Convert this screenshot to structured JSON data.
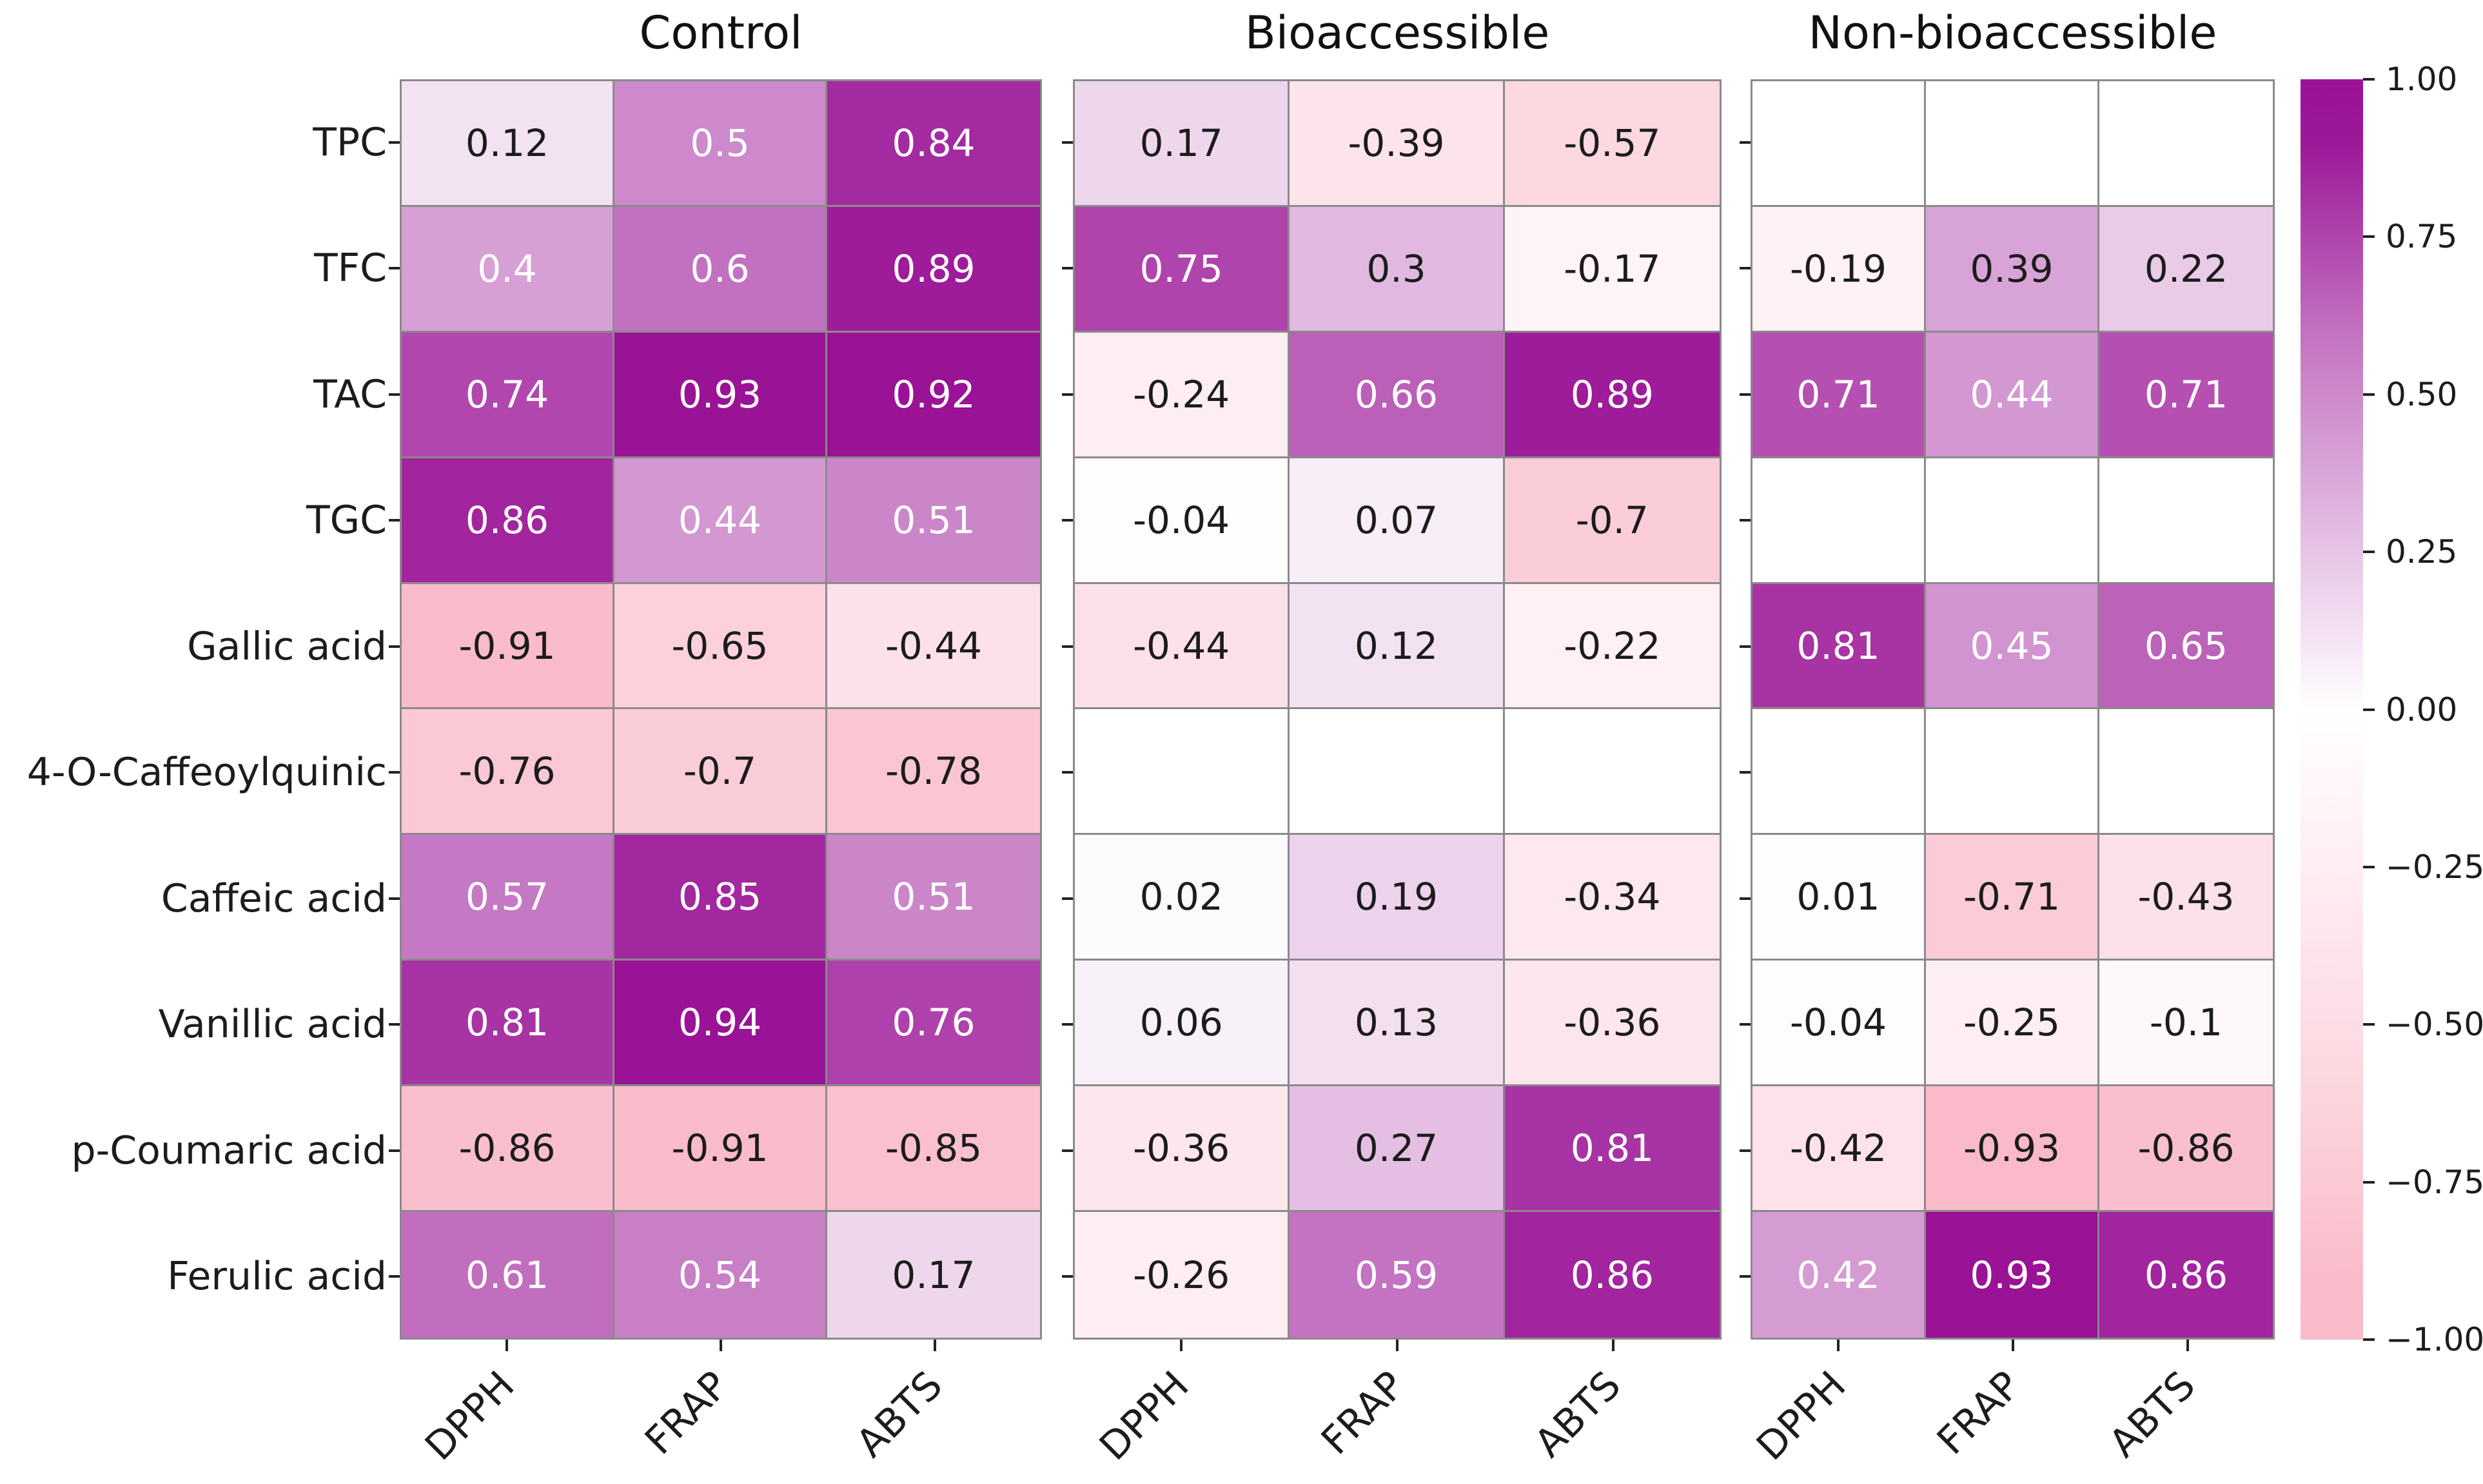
{
  "chart_data": {
    "type": "heatmap",
    "rows": [
      "TPC",
      "TFC",
      "TAC",
      "TGC",
      "Gallic acid",
      "4-O-Caffeoylquinic",
      "Caffeic acid",
      "Vanillic acid",
      "p-Coumaric acid",
      "Ferulic acid"
    ],
    "columns": [
      "DPPH",
      "FRAP",
      "ABTS"
    ],
    "panels": [
      {
        "title": "Control",
        "values": [
          [
            0.12,
            0.5,
            0.84
          ],
          [
            0.4,
            0.6,
            0.89
          ],
          [
            0.74,
            0.93,
            0.92
          ],
          [
            0.86,
            0.44,
            0.51
          ],
          [
            -0.91,
            -0.65,
            -0.44
          ],
          [
            -0.76,
            -0.7,
            -0.78
          ],
          [
            0.57,
            0.85,
            0.51
          ],
          [
            0.81,
            0.94,
            0.76
          ],
          [
            -0.86,
            -0.91,
            -0.85
          ],
          [
            0.61,
            0.54,
            0.17
          ]
        ]
      },
      {
        "title": "Bioaccessible",
        "values": [
          [
            0.17,
            -0.39,
            -0.57
          ],
          [
            0.75,
            0.3,
            -0.17
          ],
          [
            -0.24,
            0.66,
            0.89
          ],
          [
            -0.04,
            0.07,
            -0.7
          ],
          [
            -0.44,
            0.12,
            -0.22
          ],
          [
            null,
            null,
            null
          ],
          [
            0.02,
            0.19,
            -0.34
          ],
          [
            0.06,
            0.13,
            -0.36
          ],
          [
            -0.36,
            0.27,
            0.81
          ],
          [
            -0.26,
            0.59,
            0.86
          ]
        ]
      },
      {
        "title": "Non-bioaccessible",
        "values": [
          [
            null,
            null,
            null
          ],
          [
            -0.19,
            0.39,
            0.22
          ],
          [
            0.71,
            0.44,
            0.71
          ],
          [
            null,
            null,
            null
          ],
          [
            0.81,
            0.45,
            0.65
          ],
          [
            null,
            null,
            null
          ],
          [
            0.01,
            -0.71,
            -0.43
          ],
          [
            -0.04,
            -0.25,
            -0.1
          ],
          [
            -0.42,
            -0.93,
            -0.86
          ],
          [
            0.42,
            0.93,
            0.86
          ]
        ]
      }
    ],
    "value_range": [
      -1,
      1
    ],
    "colorbar_ticks": [
      "1.00",
      "0.75",
      "0.50",
      "0.25",
      "0.00",
      "−0.25",
      "−0.50",
      "−0.75",
      "−1.00"
    ],
    "legend_position": "right",
    "grid": "on",
    "colors": {
      "positive_end": "#9A1296",
      "negative_end": "#FABACA",
      "midpoint": "#FFFFFF",
      "grid_line": "#8A8A8A",
      "annotation_dark": "#1C1C1C",
      "annotation_light": "#FFFFFF"
    }
  }
}
